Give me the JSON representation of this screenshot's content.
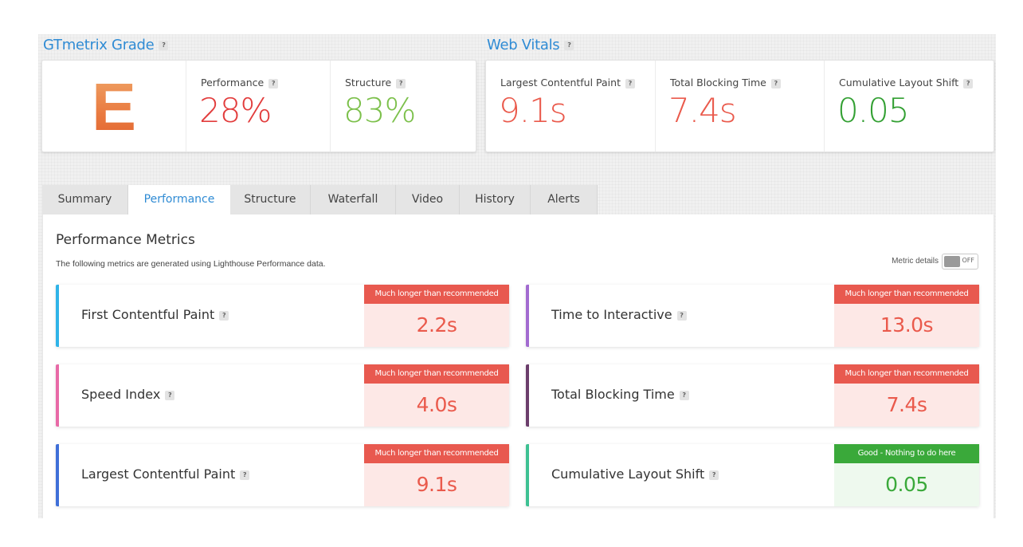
{
  "grade_section": {
    "title": "GTmetrix Grade",
    "grade": "E",
    "performance": {
      "label": "Performance",
      "value": "28%"
    },
    "structure": {
      "label": "Structure",
      "value": "83%"
    }
  },
  "vitals_section": {
    "title": "Web Vitals",
    "lcp": {
      "label": "Largest Contentful Paint",
      "value": "9.1s"
    },
    "tbt": {
      "label": "Total Blocking Time",
      "value": "7.4s"
    },
    "cls": {
      "label": "Cumulative Layout Shift",
      "value": "0.05"
    }
  },
  "help_glyph": "?",
  "tabs": [
    {
      "label": "Summary"
    },
    {
      "label": "Performance"
    },
    {
      "label": "Structure"
    },
    {
      "label": "Waterfall"
    },
    {
      "label": "Video"
    },
    {
      "label": "History"
    },
    {
      "label": "Alerts"
    }
  ],
  "active_tab": "Performance",
  "metrics_panel": {
    "title": "Performance Metrics",
    "subtitle": "The following metrics are generated using Lighthouse Performance data.",
    "toggle_label": "Metric details",
    "toggle_state": "OFF"
  },
  "metrics": [
    {
      "name": "First Contentful Paint",
      "status": "Much longer than recommended",
      "value": "2.2s",
      "color": "#2fb4e8",
      "good": false
    },
    {
      "name": "Time to Interactive",
      "status": "Much longer than recommended",
      "value": "13.0s",
      "color": "#a26bd0",
      "good": false
    },
    {
      "name": "Speed Index",
      "status": "Much longer than recommended",
      "value": "4.0s",
      "color": "#e86aa7",
      "good": false
    },
    {
      "name": "Total Blocking Time",
      "status": "Much longer than recommended",
      "value": "7.4s",
      "color": "#6b3d6b",
      "good": false
    },
    {
      "name": "Largest Contentful Paint",
      "status": "Much longer than recommended",
      "value": "9.1s",
      "color": "#3f6fd8",
      "good": false
    },
    {
      "name": "Cumulative Layout Shift",
      "status": "Good - Nothing to do here",
      "value": "0.05",
      "color": "#3ec193",
      "good": true
    }
  ],
  "colors": {
    "accent": "#2f8bd4",
    "bad_badge": "#e8594f",
    "bad_value": "#ea5a4c",
    "bad_bg": "#fde8e6",
    "good_badge": "#3aa93a",
    "good_value": "#3aa93a",
    "good_bg": "#eef9ee",
    "perf_value": "#e23c3c",
    "structure_value": "#7cc04b",
    "vital_bad": "#ea5a4c",
    "vital_good": "#33a033"
  }
}
